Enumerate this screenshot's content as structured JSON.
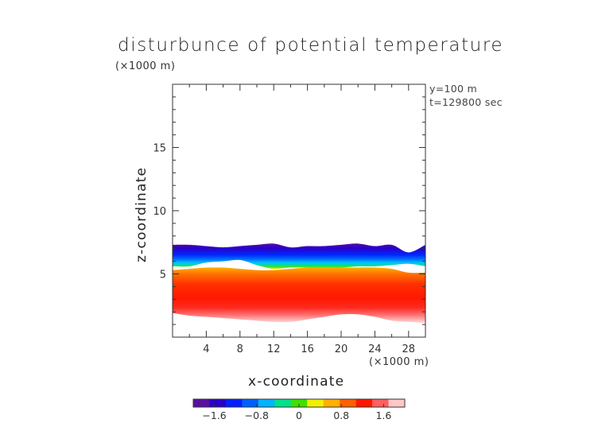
{
  "chart_data": {
    "type": "heatmap",
    "title": "disturbunce of potential temperature",
    "y_unit": "(×1000 m)",
    "x_unit": "(×1000 m)",
    "annotations": [
      "y=100 m",
      "t=129800 sec"
    ],
    "xlabel": "x-coordinate",
    "ylabel": "z-coordinate",
    "xlim": [
      0,
      30
    ],
    "ylim": [
      0,
      20
    ],
    "x_ticks": [
      4,
      8,
      12,
      16,
      20,
      24,
      28
    ],
    "y_ticks": [
      5,
      10,
      15
    ],
    "colorbar": {
      "range": [
        -2,
        2
      ],
      "ticks": [
        -1.6,
        -0.8,
        0,
        0.8,
        1.6
      ],
      "tick_labels": [
        "−1.6",
        "−0.8",
        "0",
        "0.8",
        "1.6"
      ],
      "colors": [
        "#5a0fa0",
        "#2a00c8",
        "#0020ff",
        "#0060ff",
        "#00b4ff",
        "#00e08c",
        "#40e000",
        "#f0f000",
        "#ffb000",
        "#ff6000",
        "#ff1800",
        "#ff6060",
        "#ffc8c8"
      ]
    },
    "x": [
      0,
      2,
      4,
      6,
      8,
      10,
      12,
      14,
      16,
      18,
      20,
      22,
      24,
      26,
      28,
      30
    ],
    "layers": {
      "top_of_field_z": [
        7.3,
        7.3,
        7.2,
        7.1,
        7.2,
        7.3,
        7.4,
        7.1,
        7.2,
        7.2,
        7.3,
        7.4,
        7.2,
        7.3,
        6.7,
        7.3
      ],
      "cold_anomaly_bottom_z": [
        5.6,
        5.6,
        5.9,
        6.0,
        6.1,
        5.7,
        5.4,
        5.5,
        5.5,
        5.5,
        5.5,
        5.6,
        5.6,
        5.7,
        5.8,
        5.6
      ],
      "warm_max_z": [
        4.8,
        4.9,
        5.0,
        5.0,
        4.9,
        4.8,
        4.8,
        4.9,
        5.0,
        5.0,
        5.0,
        5.0,
        5.0,
        4.9,
        4.6,
        4.6
      ],
      "bottom_of_field_z": [
        1.9,
        1.7,
        1.6,
        1.5,
        1.4,
        1.3,
        1.2,
        1.2,
        1.4,
        1.6,
        1.8,
        1.8,
        1.6,
        1.3,
        1.2,
        1.1
      ]
    }
  }
}
